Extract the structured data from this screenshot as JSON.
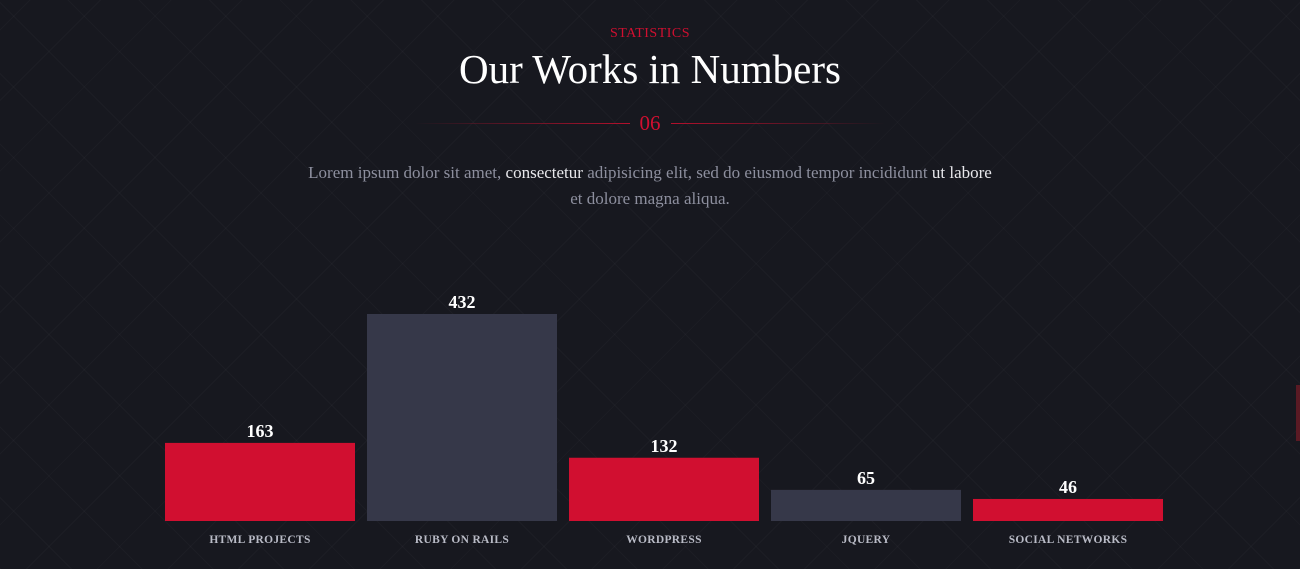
{
  "header": {
    "label": "STATISTICS",
    "title": "Our Works in Numbers",
    "section_number": "06"
  },
  "description": {
    "part1": "Lorem ipsum dolor sit amet, ",
    "hl1": "consectetur",
    "part2": " adipisicing elit, sed do eiusmod tempor incididunt ",
    "hl2": "ut labore",
    "part3": " et dolore magna aliqua."
  },
  "colors": {
    "accent": "#d10f30",
    "secondary_bar": "#363849",
    "background": "#17181f"
  },
  "chart_data": {
    "type": "bar",
    "categories": [
      "HTML PROJECTS",
      "RUBY ON RAILS",
      "WORDPRESS",
      "JQUERY",
      "SOCIAL NETWORKS"
    ],
    "values": [
      163,
      432,
      132,
      65,
      46
    ],
    "bar_colors": [
      "#d10f30",
      "#363849",
      "#d10f30",
      "#363849",
      "#d10f30"
    ],
    "title": "",
    "xlabel": "",
    "ylabel": "",
    "ylim": [
      0,
      432
    ],
    "grid": false,
    "legend": "none"
  }
}
